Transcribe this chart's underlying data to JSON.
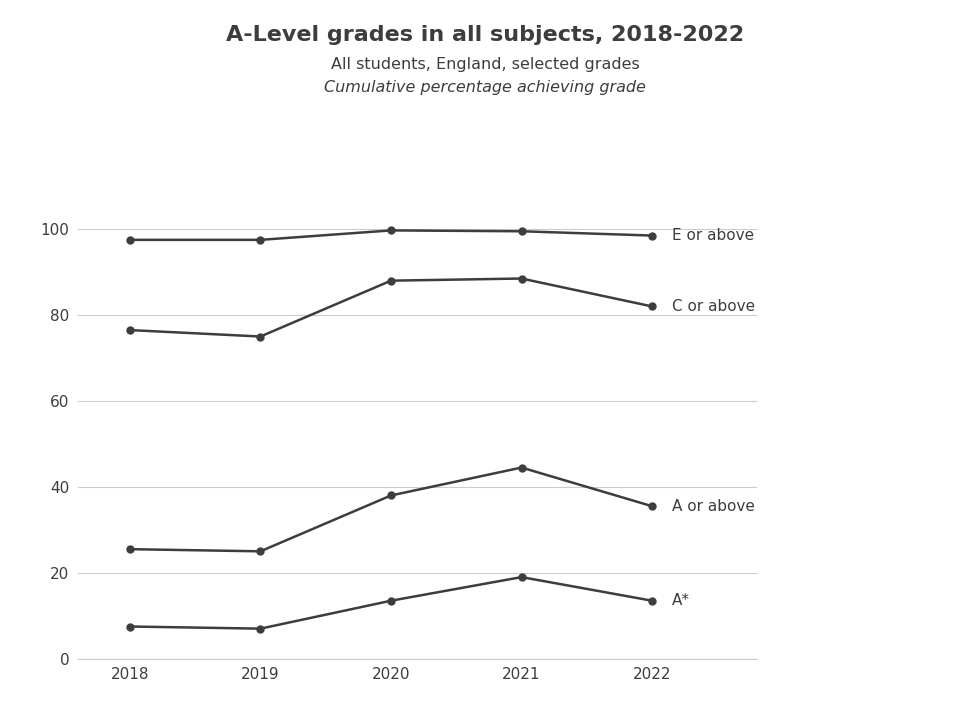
{
  "title": "A-Level grades in all subjects, 2018-2022",
  "subtitle1": "All students, England, selected grades",
  "subtitle2": "Cumulative percentage achieving grade",
  "years": [
    2018,
    2019,
    2020,
    2021,
    2022
  ],
  "series": [
    {
      "label": "E or above",
      "values": [
        97.5,
        97.5,
        99.7,
        99.5,
        98.5
      ]
    },
    {
      "label": "C or above",
      "values": [
        76.5,
        75.0,
        88.0,
        88.5,
        82.0
      ]
    },
    {
      "label": "A or above",
      "values": [
        25.5,
        25.0,
        38.0,
        44.5,
        35.5
      ]
    },
    {
      "label": "A*",
      "values": [
        7.5,
        7.0,
        13.5,
        19.0,
        13.5
      ]
    }
  ],
  "line_color": "#3d3d3d",
  "marker": "o",
  "markersize": 5,
  "linewidth": 1.8,
  "ylim": [
    0,
    105
  ],
  "yticks": [
    0,
    20,
    40,
    60,
    80,
    100
  ],
  "xlim": [
    2017.6,
    2022.8
  ],
  "background_color": "#ffffff",
  "title_fontsize": 16,
  "subtitle_fontsize": 11.5,
  "axis_tick_fontsize": 11,
  "annotation_fontsize": 11,
  "grid_color": "#cccccc",
  "title_color": "#3d3d3d",
  "text_color": "#3d3d3d"
}
